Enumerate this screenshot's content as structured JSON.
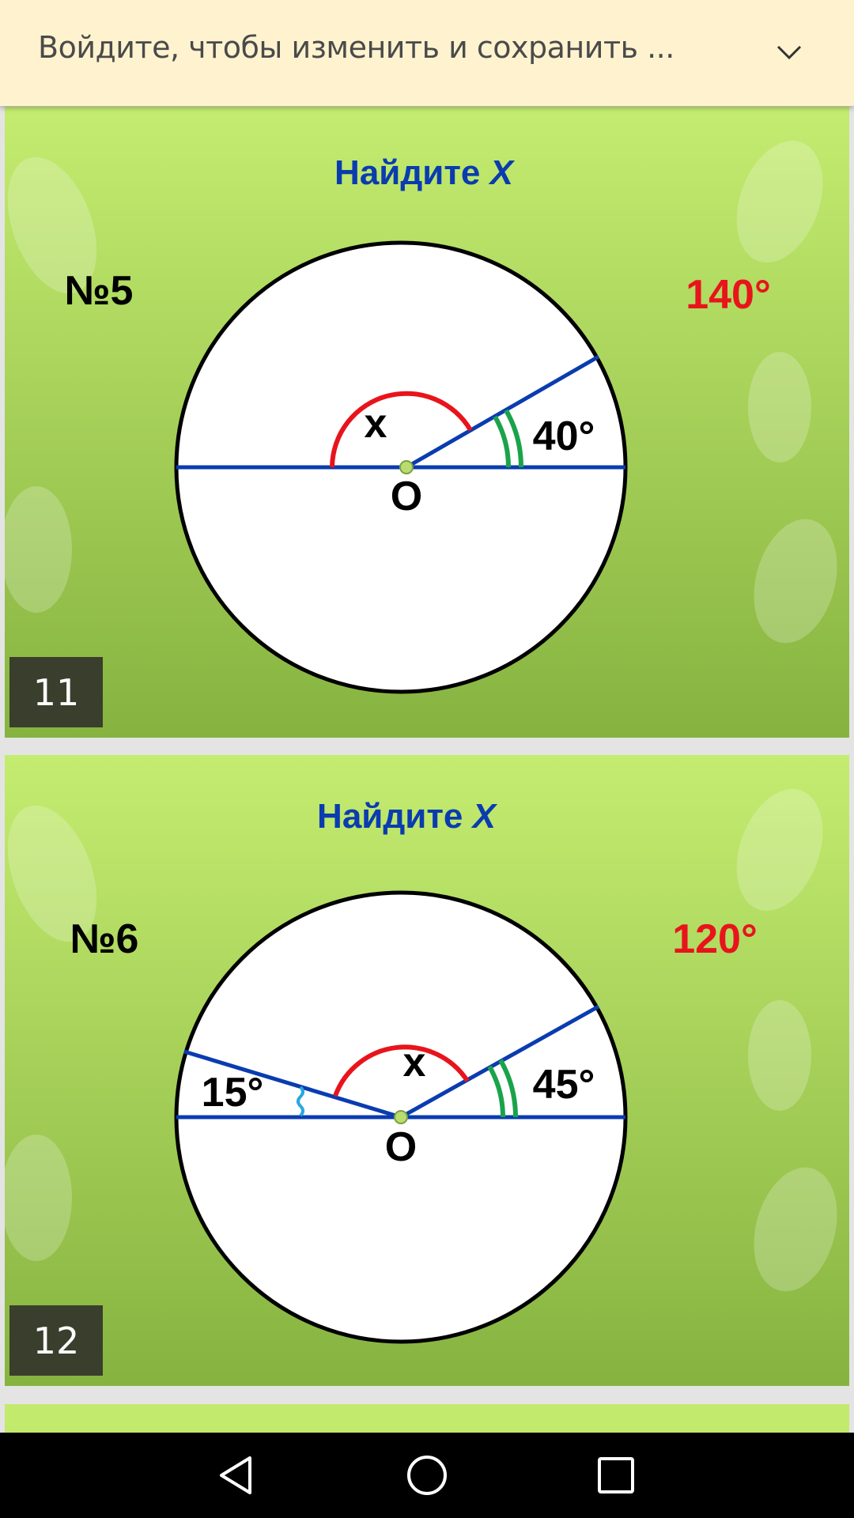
{
  "banner": {
    "text": "Войдите, чтобы изменить и сохранить ...",
    "expand_icon": "chevron-down-icon"
  },
  "slides": [
    {
      "title": "Найдите",
      "title_var": "X",
      "problem": "№5",
      "answer": "140°",
      "angle_label": "40°",
      "x_label": "x",
      "center_label": "O",
      "slide_number": "11"
    },
    {
      "title": "Найдите",
      "title_var": "X",
      "problem": "№6",
      "answer": "120°",
      "angle_label": "45°",
      "left_angle_label": "15°",
      "x_label": "x",
      "center_label": "O",
      "slide_number": "12"
    }
  ],
  "colors": {
    "title": "#0a3cb0",
    "answer": "#e8141c",
    "chord": "#0a3cb0",
    "arc_x": "#e8141c",
    "arc_angle": "#1aa34a",
    "background_top": "#c4ec70",
    "background_bottom": "#86b340"
  },
  "navbar": {
    "back_icon": "back-triangle-icon",
    "home_icon": "home-circle-icon",
    "recents_icon": "recents-square-icon"
  }
}
